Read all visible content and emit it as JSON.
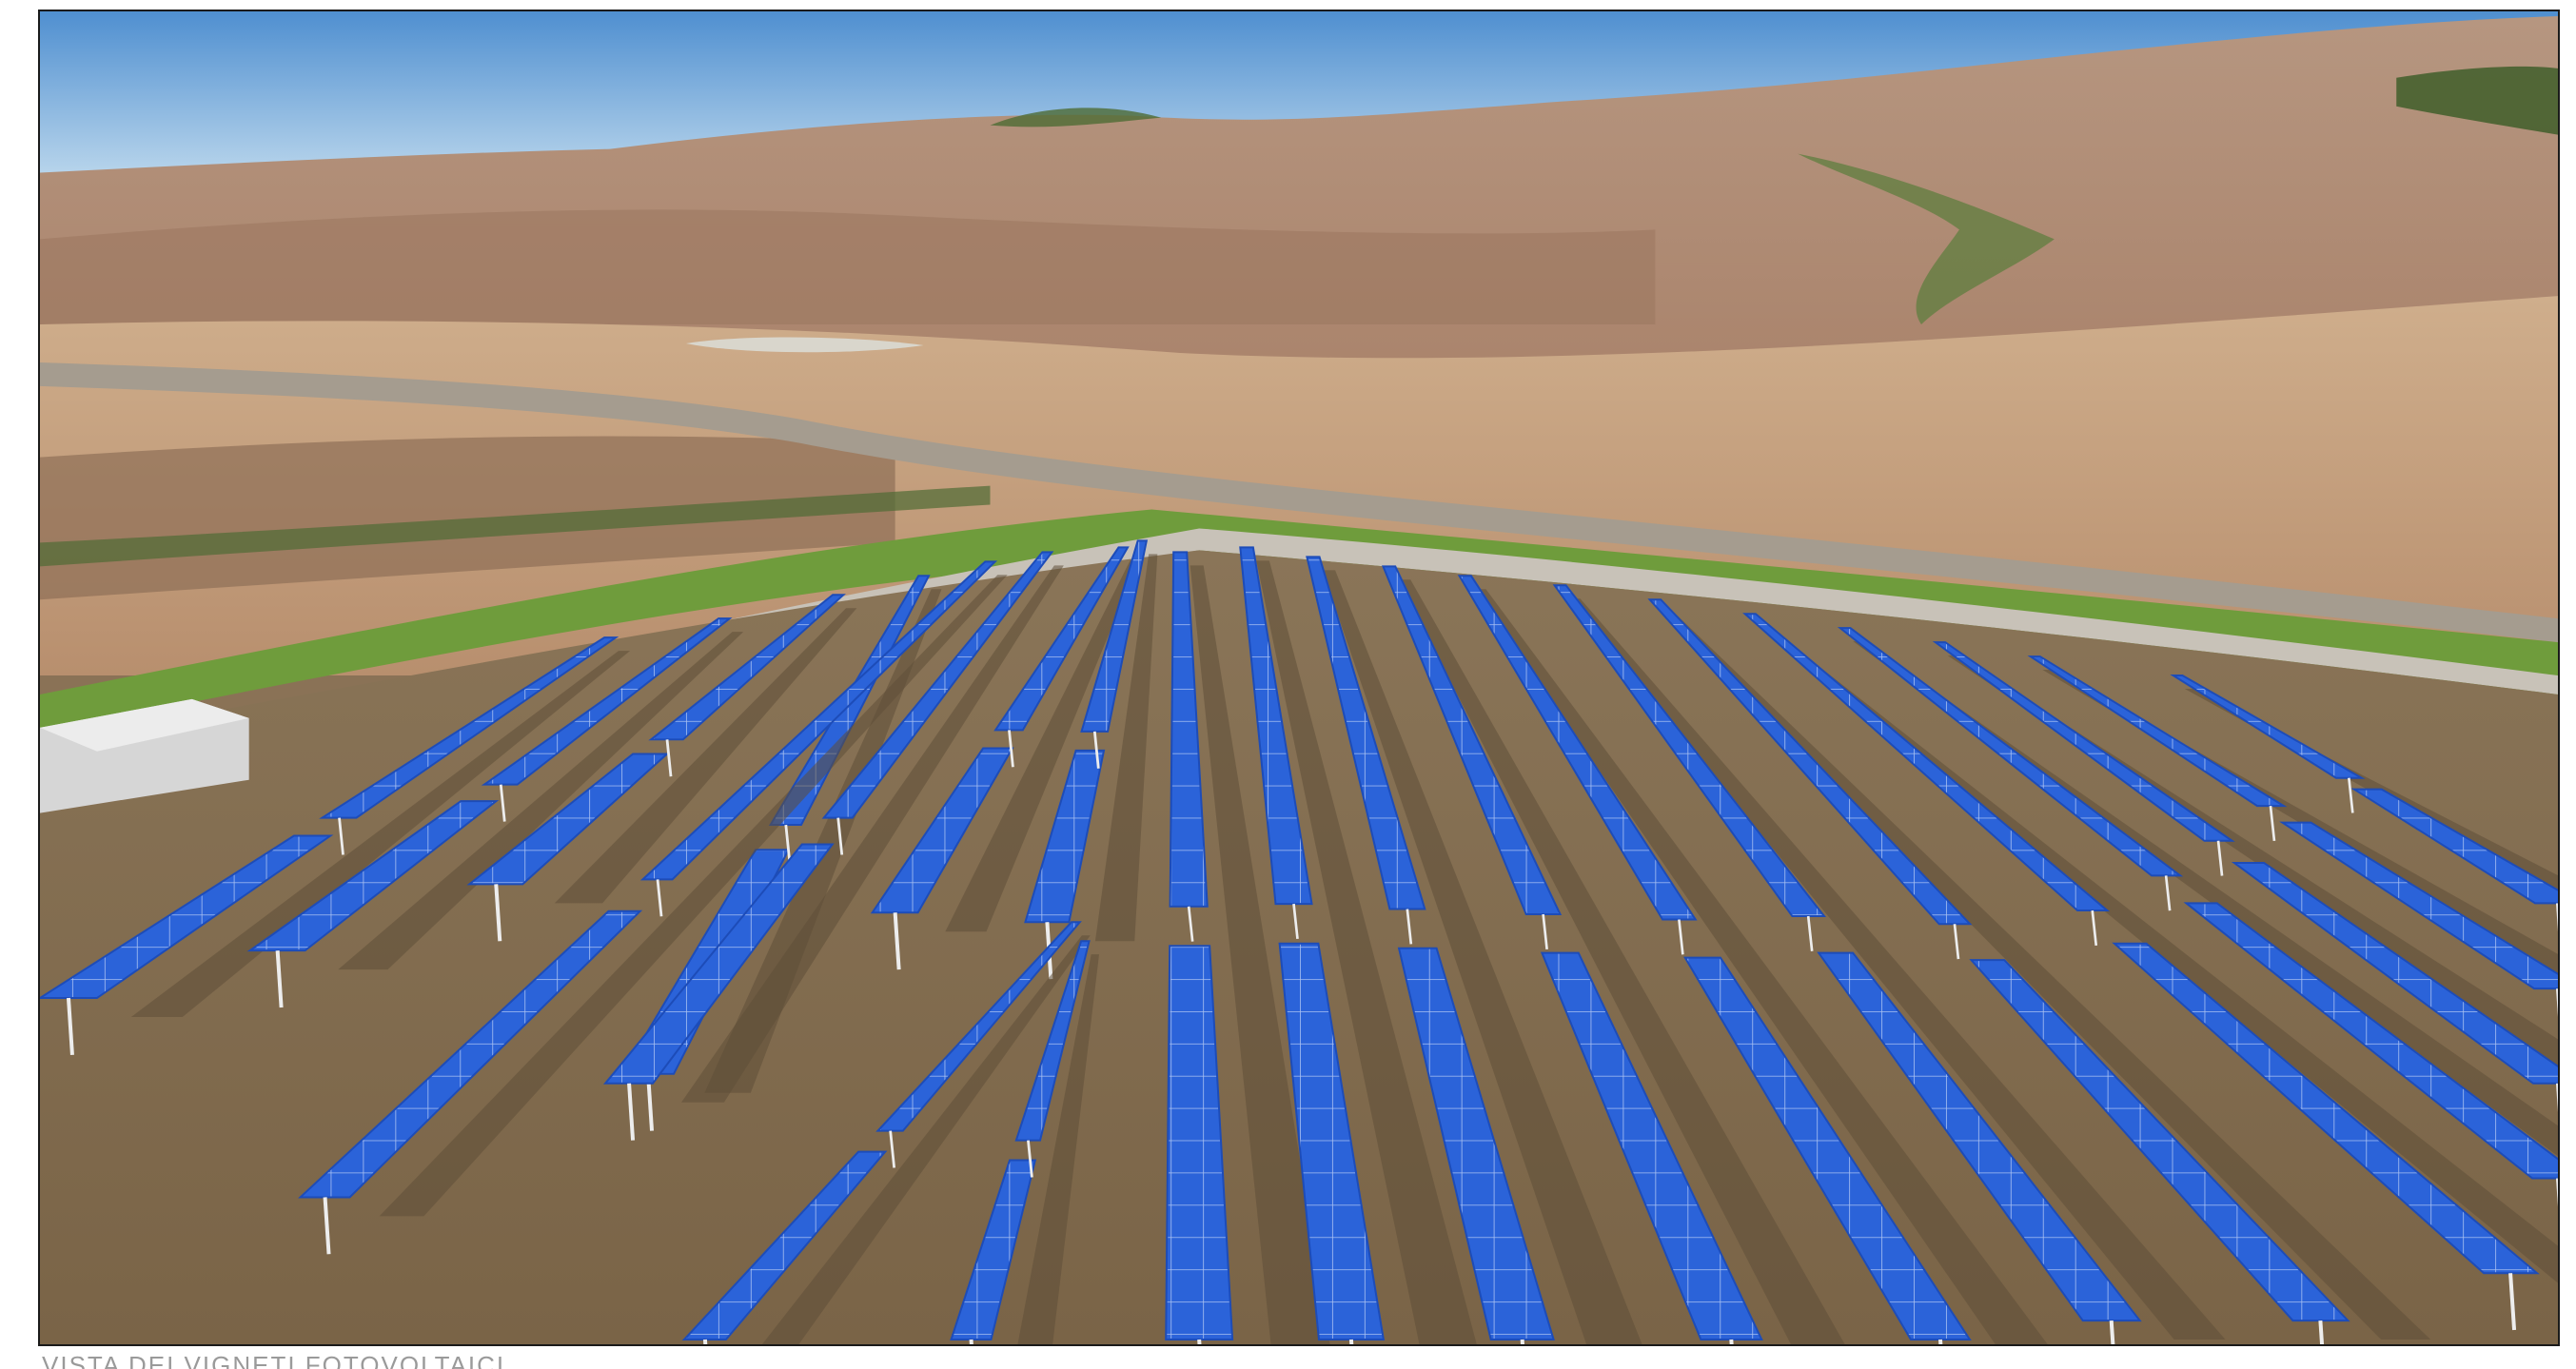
{
  "caption": "VISTA DEI VIGNETI FOTOVOLTAICI",
  "colors": {
    "sky_top": "#5b97d2",
    "sky_bottom": "#c3dcee",
    "hills": "#b58f76",
    "hills_dark": "#9c7a63",
    "field": "#c9a784",
    "road": "#a39a8c",
    "hedge": "#6b9a3a",
    "ground": "#7d6a4f",
    "panel": "#2b63d9",
    "panel_grid": "#b9cef5",
    "post": "#e8e8e8",
    "cabin": "#cfcfcf"
  },
  "scene": {
    "subject": "photovoltaic-panel-rows",
    "left_rows": 10,
    "right_rows": 12,
    "elements": [
      "sky",
      "rolling-hills",
      "road",
      "hedge-border",
      "gravel-path",
      "inverter-cabin",
      "solar-trackers"
    ]
  }
}
